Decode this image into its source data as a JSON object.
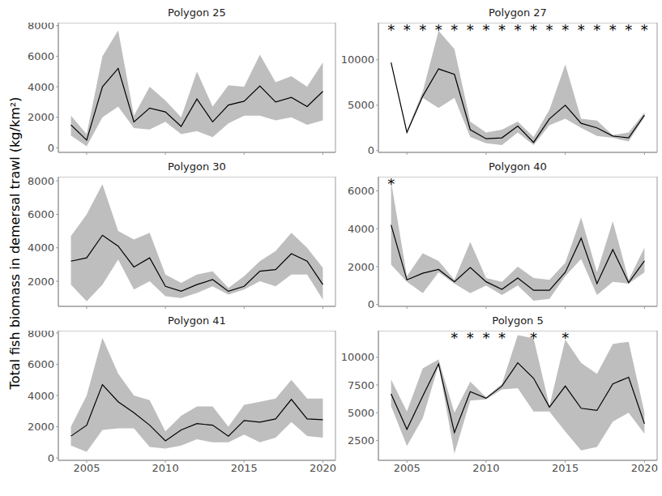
{
  "ylabel": "Total fish biomass in demersal trawl (kg/km²)",
  "chart_data": [
    {
      "type": "line",
      "title": "Polygon 25",
      "x": [
        2004,
        2005,
        2006,
        2007,
        2008,
        2009,
        2010,
        2011,
        2012,
        2013,
        2014,
        2015,
        2016,
        2017,
        2018,
        2019,
        2020
      ],
      "values": [
        1500,
        500,
        4000,
        5200,
        1700,
        2600,
        2350,
        1400,
        3200,
        1700,
        2800,
        3050,
        4050,
        3000,
        3300,
        2700,
        3700
      ],
      "lower": [
        800,
        100,
        2000,
        2700,
        1300,
        1200,
        1700,
        900,
        1100,
        700,
        1600,
        2100,
        2100,
        1800,
        2000,
        1500,
        1800
      ],
      "upper": [
        2100,
        900,
        6000,
        7700,
        2100,
        4000,
        3100,
        2000,
        5000,
        2700,
        4100,
        4000,
        6100,
        4300,
        4700,
        4000,
        5600
      ],
      "color": "#000000",
      "xlim": [
        2003.2,
        2020.8
      ],
      "xticks": [
        2005,
        2010,
        2015,
        2020
      ],
      "ylim": [
        -300,
        8200
      ],
      "yticks": [
        0,
        2000,
        4000,
        6000,
        8000
      ],
      "tick_labels": "y",
      "annotations": []
    },
    {
      "type": "line",
      "title": "Polygon 27",
      "x": [
        2004,
        2005,
        2006,
        2007,
        2008,
        2009,
        2010,
        2011,
        2012,
        2013,
        2014,
        2015,
        2016,
        2017,
        2018,
        2019,
        2020
      ],
      "values": [
        9700,
        2000,
        6000,
        9000,
        8400,
        2300,
        1300,
        1400,
        2700,
        900,
        3500,
        5000,
        3000,
        2500,
        1600,
        1400,
        3900
      ],
      "lower": [
        9700,
        1900,
        5800,
        4700,
        5800,
        1500,
        800,
        600,
        2000,
        600,
        2800,
        3500,
        2500,
        1600,
        1400,
        1000,
        3700
      ],
      "upper": [
        9700,
        2200,
        6500,
        13200,
        11200,
        3200,
        2000,
        2300,
        3200,
        1500,
        4500,
        9500,
        3500,
        3300,
        1700,
        2000,
        4200
      ],
      "color": "#000000",
      "xlim": [
        2003.2,
        2020.8
      ],
      "xticks": [
        2005,
        2010,
        2015,
        2020
      ],
      "ylim": [
        -200,
        14100
      ],
      "yticks": [
        0,
        5000,
        10000
      ],
      "tick_labels": "y",
      "annotations": [
        {
          "x": 2004,
          "label": "*"
        },
        {
          "x": 2005,
          "label": "*"
        },
        {
          "x": 2006,
          "label": "*"
        },
        {
          "x": 2007,
          "label": "*"
        },
        {
          "x": 2008,
          "label": "*"
        },
        {
          "x": 2009,
          "label": "*"
        },
        {
          "x": 2010,
          "label": "*"
        },
        {
          "x": 2011,
          "label": "*"
        },
        {
          "x": 2012,
          "label": "*"
        },
        {
          "x": 2013,
          "label": "*"
        },
        {
          "x": 2014,
          "label": "*"
        },
        {
          "x": 2015,
          "label": "*"
        },
        {
          "x": 2016,
          "label": "*"
        },
        {
          "x": 2017,
          "label": "*"
        },
        {
          "x": 2018,
          "label": "*"
        },
        {
          "x": 2019,
          "label": "*"
        },
        {
          "x": 2020,
          "label": "*"
        }
      ]
    },
    {
      "type": "line",
      "title": "Polygon 30",
      "x": [
        2004,
        2005,
        2006,
        2007,
        2008,
        2009,
        2010,
        2011,
        2012,
        2013,
        2014,
        2015,
        2016,
        2017,
        2018,
        2019,
        2020
      ],
      "values": [
        3200,
        3400,
        4750,
        4100,
        2850,
        3400,
        1700,
        1400,
        1800,
        2100,
        1400,
        1700,
        2600,
        2700,
        3650,
        3200,
        1800
      ],
      "lower": [
        1800,
        800,
        1800,
        3300,
        1500,
        2000,
        1100,
        1000,
        1300,
        1700,
        1200,
        1500,
        2000,
        1700,
        2400,
        2400,
        900
      ],
      "upper": [
        4700,
        6000,
        7800,
        5000,
        4500,
        4900,
        2400,
        1900,
        2400,
        2600,
        1600,
        2300,
        3200,
        3800,
        4900,
        4000,
        2800
      ],
      "color": "#000000",
      "xlim": [
        2003.2,
        2020.8
      ],
      "xticks": [
        2005,
        2010,
        2015,
        2020
      ],
      "ylim": [
        500,
        8250
      ],
      "yticks": [
        2000,
        4000,
        6000,
        8000
      ],
      "tick_labels": "y",
      "annotations": []
    },
    {
      "type": "line",
      "title": "Polygon 40",
      "x": [
        2004,
        2005,
        2006,
        2007,
        2008,
        2009,
        2010,
        2011,
        2012,
        2013,
        2014,
        2015,
        2016,
        2017,
        2018,
        2019,
        2020
      ],
      "values": [
        4200,
        1300,
        1650,
        1850,
        1200,
        1950,
        1200,
        800,
        1400,
        750,
        750,
        1700,
        3500,
        1100,
        2900,
        1150,
        2300
      ],
      "lower": [
        2100,
        1200,
        600,
        1700,
        1100,
        600,
        1000,
        500,
        1000,
        200,
        300,
        1500,
        2400,
        500,
        1200,
        1100,
        1700
      ],
      "upper": [
        6500,
        1500,
        2700,
        2300,
        1300,
        3300,
        1400,
        1200,
        2000,
        1400,
        1300,
        2200,
        4600,
        1700,
        4400,
        1300,
        3000
      ],
      "color": "#000000",
      "xlim": [
        2003.2,
        2020.8
      ],
      "xticks": [
        2005,
        2010,
        2015,
        2020
      ],
      "ylim": [
        -100,
        6750
      ],
      "yticks": [
        0,
        2000,
        4000,
        6000
      ],
      "tick_labels": "y",
      "annotations": [
        {
          "x": 2004,
          "label": "*"
        }
      ]
    },
    {
      "type": "line",
      "title": "Polygon 41",
      "x": [
        2004,
        2005,
        2006,
        2007,
        2008,
        2009,
        2010,
        2011,
        2012,
        2013,
        2014,
        2015,
        2016,
        2017,
        2018,
        2019,
        2020
      ],
      "values": [
        1400,
        2100,
        4700,
        3600,
        2900,
        2100,
        1100,
        1800,
        2200,
        2100,
        1400,
        2400,
        2300,
        2500,
        3750,
        2500,
        2450
      ],
      "lower": [
        800,
        400,
        1800,
        1900,
        1900,
        700,
        600,
        800,
        1200,
        1000,
        1000,
        1500,
        1000,
        1300,
        2300,
        1400,
        1300
      ],
      "upper": [
        2000,
        4000,
        7700,
        5400,
        4000,
        3700,
        1700,
        2700,
        3300,
        3300,
        2000,
        3400,
        3600,
        3800,
        5000,
        3800,
        3800
      ],
      "color": "#000000",
      "xlim": [
        2003.2,
        2020.8
      ],
      "xticks": [
        2005,
        2010,
        2015,
        2020
      ],
      "ylim": [
        -150,
        8150
      ],
      "yticks": [
        0,
        2000,
        4000,
        6000,
        8000
      ],
      "annotations": []
    },
    {
      "type": "line",
      "title": "Polygon 5",
      "x": [
        2004,
        2005,
        2006,
        2007,
        2008,
        2009,
        2010,
        2011,
        2012,
        2013,
        2014,
        2015,
        2016,
        2017,
        2018,
        2019,
        2020
      ],
      "values": [
        6700,
        3500,
        6500,
        9400,
        3200,
        6900,
        6300,
        7400,
        9500,
        8100,
        5500,
        7400,
        5400,
        5200,
        7600,
        8200,
        4000
      ],
      "lower": [
        5600,
        2000,
        4500,
        9300,
        1300,
        6100,
        6200,
        7100,
        7200,
        5100,
        5100,
        3300,
        1600,
        1900,
        4200,
        5000,
        3100
      ],
      "upper": [
        8000,
        5100,
        9000,
        9800,
        5000,
        7800,
        6400,
        7600,
        12000,
        11700,
        5600,
        11600,
        9500,
        8500,
        11200,
        11400,
        5000
      ],
      "color": "#000000",
      "xlim": [
        2003.2,
        2020.8
      ],
      "xticks": [
        2005,
        2010,
        2015,
        2020
      ],
      "ylim": [
        700,
        12400
      ],
      "yticks": [
        2500,
        5000,
        7500,
        10000
      ],
      "annotations": [
        {
          "x": 2008,
          "label": "*"
        },
        {
          "x": 2009,
          "label": "*"
        },
        {
          "x": 2010,
          "label": "*"
        },
        {
          "x": 2011,
          "label": "*"
        },
        {
          "x": 2013,
          "label": "*"
        },
        {
          "x": 2015,
          "label": "*"
        }
      ]
    }
  ]
}
